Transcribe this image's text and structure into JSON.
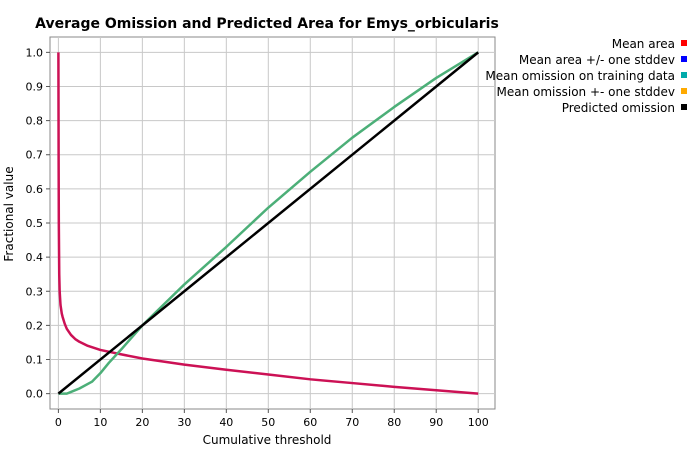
{
  "chart_data": {
    "type": "line",
    "title": "Average Omission and Predicted Area for Emys_orbicularis",
    "xlabel": "Cumulative threshold",
    "ylabel": "Fractional value",
    "xlim": [
      -2,
      104
    ],
    "ylim": [
      -0.045,
      1.045
    ],
    "xticks": [
      "0",
      "10",
      "20",
      "30",
      "40",
      "50",
      "60",
      "70",
      "80",
      "90",
      "100"
    ],
    "yticks": [
      "0.0",
      "0.1",
      "0.2",
      "0.3",
      "0.4",
      "0.5",
      "0.6",
      "0.7",
      "0.8",
      "0.9",
      "1.0"
    ],
    "grid": true,
    "legend_position": "right",
    "legend": [
      {
        "label": "Mean area",
        "color": "#ff0000"
      },
      {
        "label": "Mean area +/- one stddev",
        "color": "#0000ff"
      },
      {
        "label": "Mean omission on training data",
        "color": "#00aaaa"
      },
      {
        "label": "Mean omission +- one stddev",
        "color": "#ffaa00"
      },
      {
        "label": "Predicted omission",
        "color": "#000000"
      }
    ],
    "series": [
      {
        "name": "Mean area",
        "color": "#cc1155",
        "x": [
          0,
          0.05,
          0.1,
          0.2,
          0.3,
          0.5,
          0.8,
          1,
          1.5,
          2,
          3,
          4,
          5,
          7,
          10,
          15,
          20,
          30,
          40,
          50,
          60,
          70,
          80,
          90,
          100
        ],
        "y": [
          1.0,
          0.7,
          0.5,
          0.35,
          0.3,
          0.26,
          0.235,
          0.225,
          0.205,
          0.19,
          0.172,
          0.16,
          0.152,
          0.14,
          0.128,
          0.115,
          0.103,
          0.085,
          0.07,
          0.056,
          0.042,
          0.031,
          0.02,
          0.01,
          0.0
        ]
      },
      {
        "name": "Mean omission on training data",
        "color": "#4caf78",
        "x": [
          0,
          1,
          2,
          3,
          5,
          8,
          10,
          12,
          15,
          20,
          25,
          30,
          40,
          50,
          60,
          70,
          80,
          90,
          100
        ],
        "y": [
          0.0,
          0.0,
          0.0,
          0.005,
          0.015,
          0.035,
          0.06,
          0.09,
          0.13,
          0.2,
          0.26,
          0.32,
          0.43,
          0.545,
          0.65,
          0.75,
          0.84,
          0.925,
          1.0
        ]
      },
      {
        "name": "Predicted omission",
        "color": "#000000",
        "x": [
          0,
          100
        ],
        "y": [
          0.0,
          1.0
        ]
      }
    ]
  }
}
